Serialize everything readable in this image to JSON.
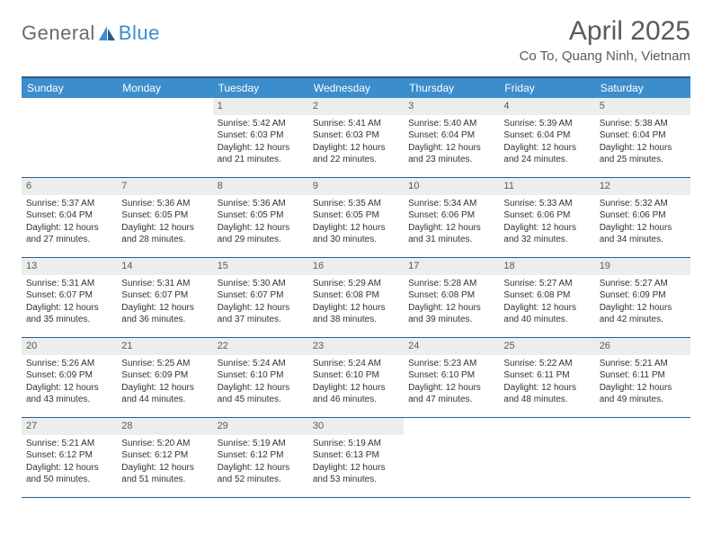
{
  "brand": {
    "name1": "General",
    "name2": "Blue",
    "name2_color": "#3c8dcc"
  },
  "title": "April 2025",
  "location": "Co To, Quang Ninh, Vietnam",
  "colors": {
    "header_bg": "#3c8dcc",
    "header_text": "#ffffff",
    "border": "#2b5c8a",
    "daynum_bg": "#eceded",
    "daynum_text": "#5a5a5a",
    "body_text": "#333333",
    "page_bg": "#ffffff"
  },
  "layout": {
    "columns": 7,
    "rows": 5,
    "first_day_column_index": 2
  },
  "weekdays": [
    "Sunday",
    "Monday",
    "Tuesday",
    "Wednesday",
    "Thursday",
    "Friday",
    "Saturday"
  ],
  "days": [
    {
      "n": 1,
      "sr": "5:42 AM",
      "ss": "6:03 PM",
      "dl": "12 hours and 21 minutes."
    },
    {
      "n": 2,
      "sr": "5:41 AM",
      "ss": "6:03 PM",
      "dl": "12 hours and 22 minutes."
    },
    {
      "n": 3,
      "sr": "5:40 AM",
      "ss": "6:04 PM",
      "dl": "12 hours and 23 minutes."
    },
    {
      "n": 4,
      "sr": "5:39 AM",
      "ss": "6:04 PM",
      "dl": "12 hours and 24 minutes."
    },
    {
      "n": 5,
      "sr": "5:38 AM",
      "ss": "6:04 PM",
      "dl": "12 hours and 25 minutes."
    },
    {
      "n": 6,
      "sr": "5:37 AM",
      "ss": "6:04 PM",
      "dl": "12 hours and 27 minutes."
    },
    {
      "n": 7,
      "sr": "5:36 AM",
      "ss": "6:05 PM",
      "dl": "12 hours and 28 minutes."
    },
    {
      "n": 8,
      "sr": "5:36 AM",
      "ss": "6:05 PM",
      "dl": "12 hours and 29 minutes."
    },
    {
      "n": 9,
      "sr": "5:35 AM",
      "ss": "6:05 PM",
      "dl": "12 hours and 30 minutes."
    },
    {
      "n": 10,
      "sr": "5:34 AM",
      "ss": "6:06 PM",
      "dl": "12 hours and 31 minutes."
    },
    {
      "n": 11,
      "sr": "5:33 AM",
      "ss": "6:06 PM",
      "dl": "12 hours and 32 minutes."
    },
    {
      "n": 12,
      "sr": "5:32 AM",
      "ss": "6:06 PM",
      "dl": "12 hours and 34 minutes."
    },
    {
      "n": 13,
      "sr": "5:31 AM",
      "ss": "6:07 PM",
      "dl": "12 hours and 35 minutes."
    },
    {
      "n": 14,
      "sr": "5:31 AM",
      "ss": "6:07 PM",
      "dl": "12 hours and 36 minutes."
    },
    {
      "n": 15,
      "sr": "5:30 AM",
      "ss": "6:07 PM",
      "dl": "12 hours and 37 minutes."
    },
    {
      "n": 16,
      "sr": "5:29 AM",
      "ss": "6:08 PM",
      "dl": "12 hours and 38 minutes."
    },
    {
      "n": 17,
      "sr": "5:28 AM",
      "ss": "6:08 PM",
      "dl": "12 hours and 39 minutes."
    },
    {
      "n": 18,
      "sr": "5:27 AM",
      "ss": "6:08 PM",
      "dl": "12 hours and 40 minutes."
    },
    {
      "n": 19,
      "sr": "5:27 AM",
      "ss": "6:09 PM",
      "dl": "12 hours and 42 minutes."
    },
    {
      "n": 20,
      "sr": "5:26 AM",
      "ss": "6:09 PM",
      "dl": "12 hours and 43 minutes."
    },
    {
      "n": 21,
      "sr": "5:25 AM",
      "ss": "6:09 PM",
      "dl": "12 hours and 44 minutes."
    },
    {
      "n": 22,
      "sr": "5:24 AM",
      "ss": "6:10 PM",
      "dl": "12 hours and 45 minutes."
    },
    {
      "n": 23,
      "sr": "5:24 AM",
      "ss": "6:10 PM",
      "dl": "12 hours and 46 minutes."
    },
    {
      "n": 24,
      "sr": "5:23 AM",
      "ss": "6:10 PM",
      "dl": "12 hours and 47 minutes."
    },
    {
      "n": 25,
      "sr": "5:22 AM",
      "ss": "6:11 PM",
      "dl": "12 hours and 48 minutes."
    },
    {
      "n": 26,
      "sr": "5:21 AM",
      "ss": "6:11 PM",
      "dl": "12 hours and 49 minutes."
    },
    {
      "n": 27,
      "sr": "5:21 AM",
      "ss": "6:12 PM",
      "dl": "12 hours and 50 minutes."
    },
    {
      "n": 28,
      "sr": "5:20 AM",
      "ss": "6:12 PM",
      "dl": "12 hours and 51 minutes."
    },
    {
      "n": 29,
      "sr": "5:19 AM",
      "ss": "6:12 PM",
      "dl": "12 hours and 52 minutes."
    },
    {
      "n": 30,
      "sr": "5:19 AM",
      "ss": "6:13 PM",
      "dl": "12 hours and 53 minutes."
    }
  ],
  "labels": {
    "sunrise": "Sunrise:",
    "sunset": "Sunset:",
    "daylight": "Daylight:"
  }
}
